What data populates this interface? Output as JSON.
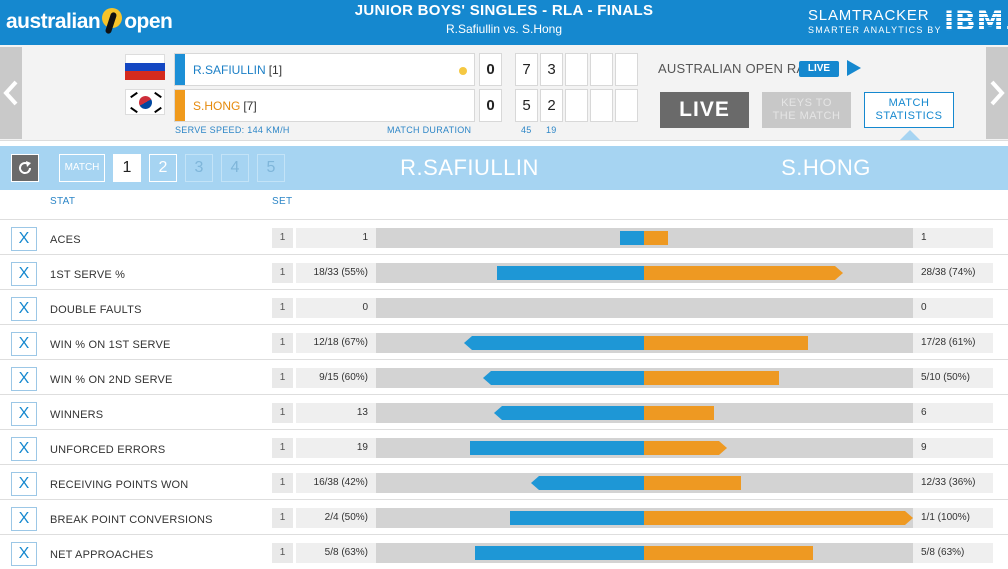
{
  "brand": {
    "logo_left": "australian",
    "logo_right": "open",
    "slamtracker": "SLAMTRACKER",
    "slamtracker_sub": "SMARTER ANALYTICS BY",
    "ibm": "IBM."
  },
  "header": {
    "title": "JUNIOR BOYS' SINGLES - RLA - FINALS",
    "subtitle": "R.Safiullin vs. S.Hong"
  },
  "colors": {
    "header_blue": "#1588cf",
    "player1": "#1e97d6",
    "player2": "#ee9922",
    "set_bar": "#a6d4f2"
  },
  "score": {
    "player1": {
      "name": "R.SAFIULLIN",
      "seed": "[1]",
      "games": "0",
      "sets": [
        "7",
        "3",
        "",
        "",
        ""
      ],
      "serving": true
    },
    "player2": {
      "name": "S.HONG",
      "seed": "[7]",
      "games": "0",
      "sets": [
        "5",
        "2",
        "",
        "",
        ""
      ],
      "serving": false
    },
    "serve_speed": "SERVE SPEED: 144 KM/H",
    "match_duration_label": "MATCH DURATION",
    "match_duration_values": [
      "45",
      "19"
    ]
  },
  "radio": {
    "label": "AUSTRALIAN OPEN RADIO",
    "live_badge": "LIVE"
  },
  "buttons": {
    "live": "LIVE",
    "keys_line1": "KEYS TO",
    "keys_line2": "THE MATCH",
    "stats_line1": "MATCH",
    "stats_line2": "STATISTICS"
  },
  "sets_nav": {
    "match": "MATCH",
    "sets": [
      "1",
      "2",
      "3",
      "4",
      "5"
    ],
    "active": "1"
  },
  "players_header": {
    "player1": "R.SAFIULLIN",
    "player2": "S.HONG"
  },
  "columns": {
    "stat": "STAT",
    "set": "SET"
  },
  "stats": [
    {
      "label": "ACES",
      "set": "1",
      "left": "1",
      "right": "1",
      "left_pct": 0.09,
      "right_pct": 0.09,
      "left_tip": false,
      "right_tip": false,
      "close": "X"
    },
    {
      "label": "1ST SERVE %",
      "set": "1",
      "left": "18/33 (55%)",
      "right": "28/38 (74%)",
      "left_pct": 0.55,
      "right_pct": 0.74,
      "left_tip": false,
      "right_tip": true,
      "close": "X"
    },
    {
      "label": "DOUBLE FAULTS",
      "set": "1",
      "left": "0",
      "right": "0",
      "left_pct": 0,
      "right_pct": 0,
      "left_tip": false,
      "right_tip": false,
      "close": "X"
    },
    {
      "label": "WIN % ON 1ST SERVE",
      "set": "1",
      "left": "12/18 (67%)",
      "right": "17/28 (61%)",
      "left_pct": 0.67,
      "right_pct": 0.61,
      "left_tip": true,
      "right_tip": false,
      "close": "X"
    },
    {
      "label": "WIN % ON 2ND SERVE",
      "set": "1",
      "left": "9/15 (60%)",
      "right": "5/10 (50%)",
      "left_pct": 0.6,
      "right_pct": 0.5,
      "left_tip": true,
      "right_tip": false,
      "close": "X"
    },
    {
      "label": "WINNERS",
      "set": "1",
      "left": "13",
      "right": "6",
      "left_pct": 0.56,
      "right_pct": 0.26,
      "left_tip": true,
      "right_tip": false,
      "close": "X"
    },
    {
      "label": "UNFORCED ERRORS",
      "set": "1",
      "left": "19",
      "right": "9",
      "left_pct": 0.65,
      "right_pct": 0.31,
      "left_tip": false,
      "right_tip": true,
      "close": "X"
    },
    {
      "label": "RECEIVING POINTS WON",
      "set": "1",
      "left": "16/38 (42%)",
      "right": "12/33 (36%)",
      "left_pct": 0.42,
      "right_pct": 0.36,
      "left_tip": true,
      "right_tip": false,
      "close": "X"
    },
    {
      "label": "BREAK POINT CONVERSIONS",
      "set": "1",
      "left": "2/4 (50%)",
      "right": "1/1 (100%)",
      "left_pct": 0.5,
      "right_pct": 1.0,
      "left_tip": false,
      "right_tip": true,
      "close": "X"
    },
    {
      "label": "NET APPROACHES",
      "set": "1",
      "left": "5/8 (63%)",
      "right": "5/8 (63%)",
      "left_pct": 0.63,
      "right_pct": 0.63,
      "left_tip": false,
      "right_tip": false,
      "close": "X"
    }
  ]
}
